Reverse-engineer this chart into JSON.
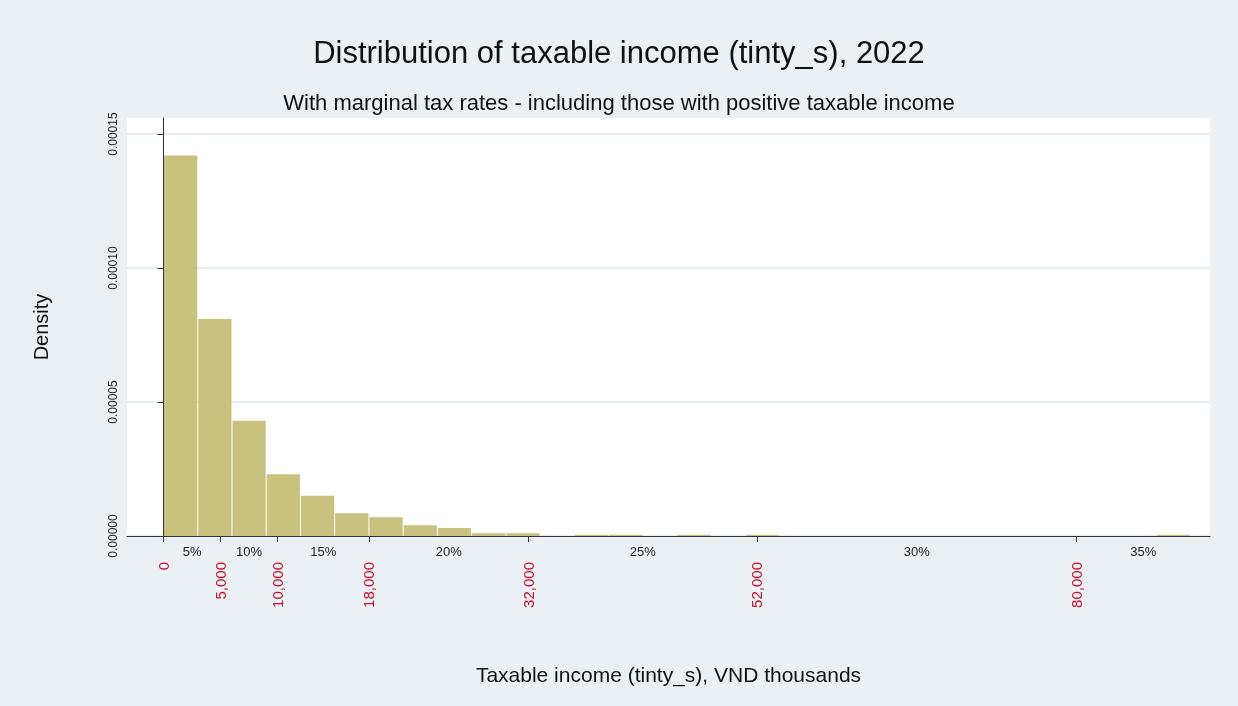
{
  "chart_data": {
    "type": "histogram",
    "title": "Distribution of taxable income (tinty_s), 2022",
    "subtitle": "With marginal tax rates - including those with positive taxable income",
    "xlabel": "Taxable income (tinty_s), VND thousands",
    "ylabel": "Density",
    "bins": [
      0,
      3000,
      6000,
      9000,
      12000,
      15000,
      18000,
      21000,
      24000,
      27000,
      30000,
      33000,
      36000,
      39000,
      42000,
      45000,
      48000,
      51000,
      54000,
      57000,
      60000,
      63000,
      66000,
      69000,
      72000,
      75000,
      78000,
      81000,
      84000,
      87000,
      90000
    ],
    "values": [
      0.000142,
      8.1e-05,
      4.3e-05,
      2.3e-05,
      1.5e-05,
      8.5e-06,
      7e-06,
      4e-06,
      3e-06,
      1e-06,
      1e-06,
      0,
      5e-07,
      5e-07,
      0,
      5e-07,
      0,
      5e-07,
      0,
      0,
      0,
      0,
      0,
      0,
      0,
      0,
      0,
      0,
      0,
      5e-07
    ],
    "color": "#c9c27f",
    "xlim": [
      -3200,
      91700
    ],
    "xticks": [
      {
        "value": 0,
        "label": "0"
      },
      {
        "value": 5000,
        "label": "5,000"
      },
      {
        "value": 10000,
        "label": "10,000"
      },
      {
        "value": 18000,
        "label": "18,000"
      },
      {
        "value": 32000,
        "label": "32,000"
      },
      {
        "value": 52000,
        "label": "52,000"
      },
      {
        "value": 80000,
        "label": "80,000"
      }
    ],
    "ylim": [
      0,
      0.000156
    ],
    "yticks": [
      {
        "value": 0,
        "label": "0.00000"
      },
      {
        "value": 5e-05,
        "label": "0.00005"
      },
      {
        "value": 0.0001,
        "label": "0.00010"
      },
      {
        "value": 0.00015,
        "label": "0.00015"
      }
    ],
    "grid": "y",
    "annotations": [
      "5%",
      "10%",
      "15%",
      "20%",
      "25%",
      "30%",
      "35%"
    ]
  }
}
